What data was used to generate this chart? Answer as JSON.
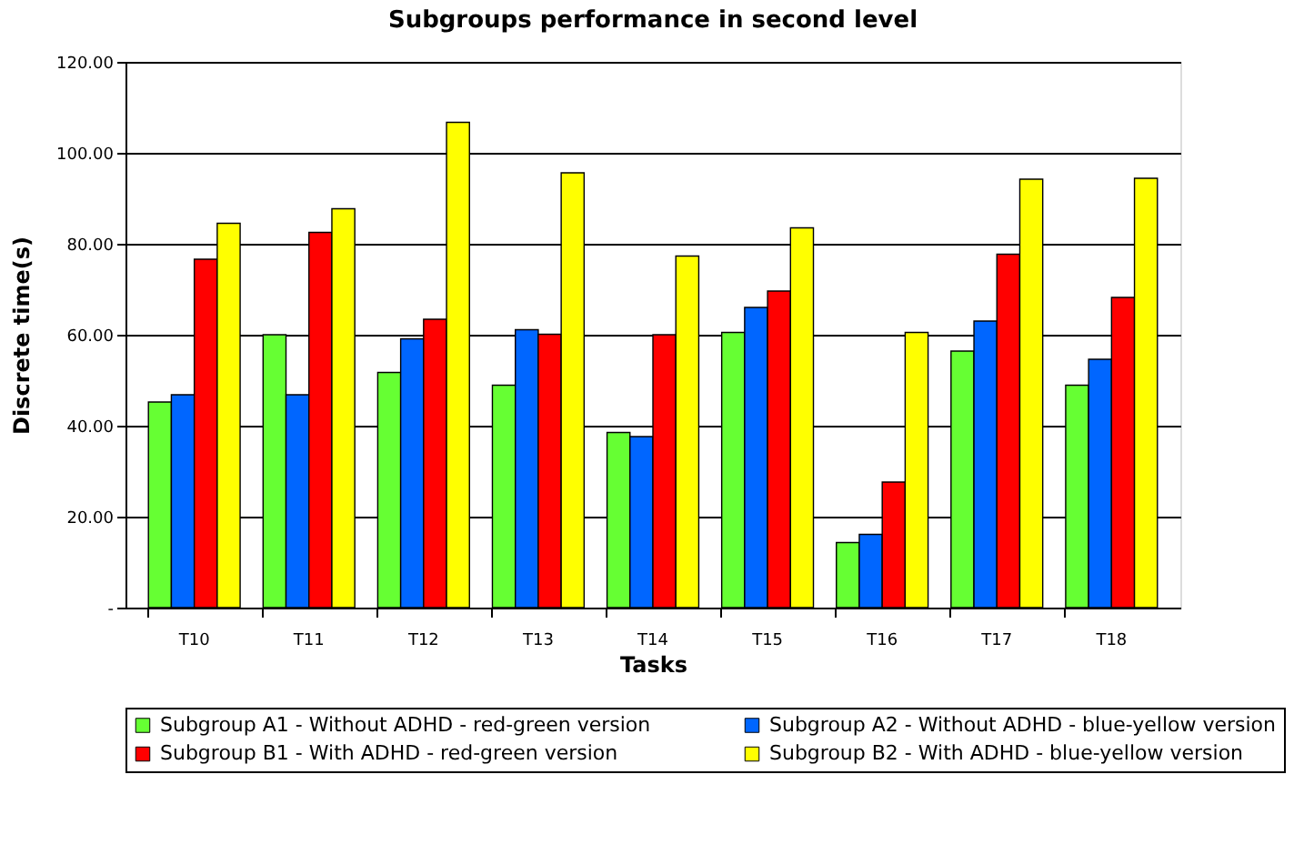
{
  "chart_data": {
    "type": "bar",
    "title": "Subgroups performance in second level",
    "xlabel": "Tasks",
    "ylabel": "Discrete time(s)",
    "categories": [
      "T10",
      "T11",
      "T12",
      "T13",
      "T14",
      "T15",
      "T16",
      "T17",
      "T18"
    ],
    "series": [
      {
        "name": "Subgroup A1 - Without ADHD - red-green version",
        "color": "#66ff33",
        "values": [
          45.2,
          60.0,
          51.7,
          48.9,
          38.5,
          60.5,
          14.3,
          56.4,
          48.9
        ]
      },
      {
        "name": "Subgroup A2 - Without ADHD - blue-yellow version",
        "color": "#0066ff",
        "values": [
          46.8,
          46.8,
          59.1,
          61.1,
          37.6,
          66.0,
          16.1,
          63.0,
          54.6
        ]
      },
      {
        "name": "Subgroup B1 - With ADHD - red-green version",
        "color": "#ff0000",
        "values": [
          76.6,
          82.5,
          63.4,
          60.1,
          60.0,
          69.6,
          27.6,
          77.7,
          68.2
        ]
      },
      {
        "name": "Subgroup B2 - With ADHD - blue-yellow version",
        "color": "#ffff00",
        "values": [
          84.5,
          87.7,
          106.7,
          95.6,
          77.3,
          83.5,
          60.5,
          94.2,
          94.4
        ]
      }
    ],
    "ylim": [
      0,
      120
    ],
    "yticks": [
      {
        "value": 0,
        "label": "-"
      },
      {
        "value": 20,
        "label": "20.00"
      },
      {
        "value": 40,
        "label": "40.00"
      },
      {
        "value": 60,
        "label": "60.00"
      },
      {
        "value": 80,
        "label": "80.00"
      },
      {
        "value": 100,
        "label": "100.00"
      },
      {
        "value": 120,
        "label": "120.00"
      }
    ],
    "grid": "y",
    "legend": "bottom"
  }
}
